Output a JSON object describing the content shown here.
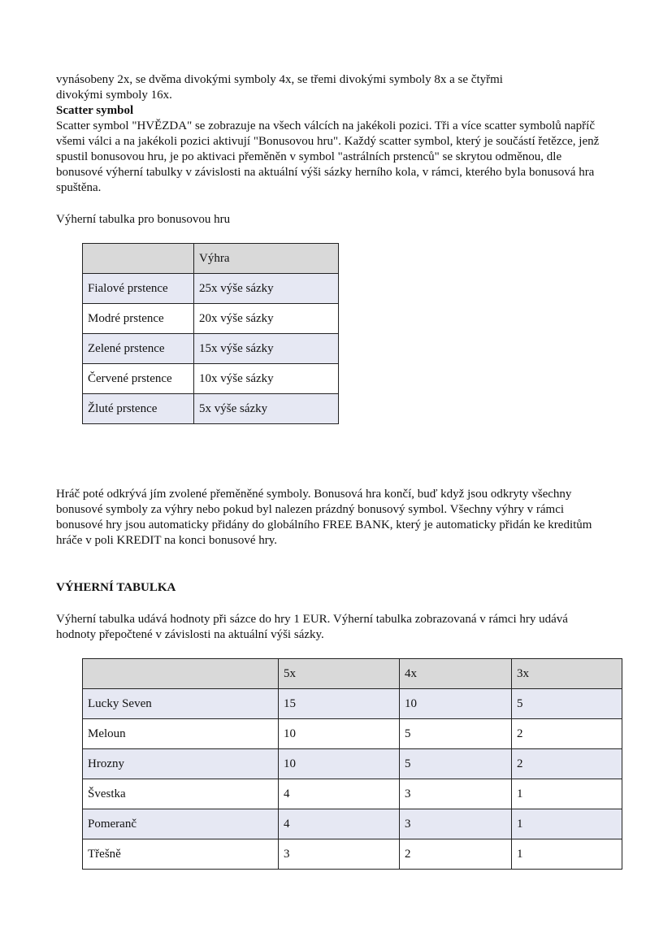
{
  "intro_lines": [
    "vynásobeny 2x, se dvěma divokými symboly 4x, se třemi divokými symboly 8x a se čtyřmi",
    "divokými symboly 16x."
  ],
  "scatter_heading": "Scatter symbol",
  "scatter_text": "Scatter symbol \"HVĚZDA\" se zobrazuje na všech válcích na jakékoli pozici. Tři a více scatter symbolů napříč všemi válci a na jakékoli pozici aktivují \"Bonusovou hru\". Každý scatter symbol, který je součástí řetězce, jenž spustil bonusovou hru, je po aktivaci přeměněn v symbol \"astrálních prstenců\" se skrytou odměnou, dle bonusové výherní tabulky v závislosti na aktuální výši sázky herního kola, v rámci, kterého byla bonusová hra spuštěna.",
  "bonus_table_caption": "Výherní tabulka pro bonusovou hru",
  "bonus_table": {
    "headers": [
      "",
      "Výhra"
    ],
    "rows": [
      [
        "Fialové prstence",
        "25x výše sázky"
      ],
      [
        "Modré prstence",
        "20x výše sázky"
      ],
      [
        "Zelené prstence",
        "15x výše sázky"
      ],
      [
        "Červené prstence",
        "10x výše sázky"
      ],
      [
        "Žluté prstence",
        "5x výše sázky"
      ]
    ]
  },
  "bonus_end_text": "Hráč poté odkrývá jím zvolené přeměněné symboly. Bonusová hra končí, buď když jsou odkryty všechny bonusové symboly za výhry nebo pokud byl nalezen prázdný bonusový symbol. Všechny výhry v rámci bonusové hry jsou automaticky přidány do globálního FREE BANK, který je automaticky přidán ke kreditům hráče v poli KREDIT na konci bonusové hry.",
  "paytable_heading": "VÝHERNÍ TABULKA",
  "paytable_text": "Výherní tabulka udává hodnoty při sázce do hry 1 EUR. Výherní tabulka zobrazovaná v rámci hry udává hodnoty přepočtené v závislosti na aktuální výši sázky.",
  "paytable": {
    "headers": [
      "",
      "5x",
      "4x",
      "3x"
    ],
    "rows": [
      [
        "Lucky Seven",
        "15",
        "10",
        "5"
      ],
      [
        "Meloun",
        "10",
        "5",
        "2"
      ],
      [
        "Hrozny",
        "10",
        "5",
        "2"
      ],
      [
        "Švestka",
        "4",
        "3",
        "1"
      ],
      [
        "Pomeranč",
        "4",
        "3",
        "1"
      ],
      [
        "Třešně",
        "3",
        "2",
        "1"
      ]
    ]
  },
  "colors": {
    "header_bg": "#d9d9d9",
    "stripe_bg": "#e6e8f3"
  }
}
